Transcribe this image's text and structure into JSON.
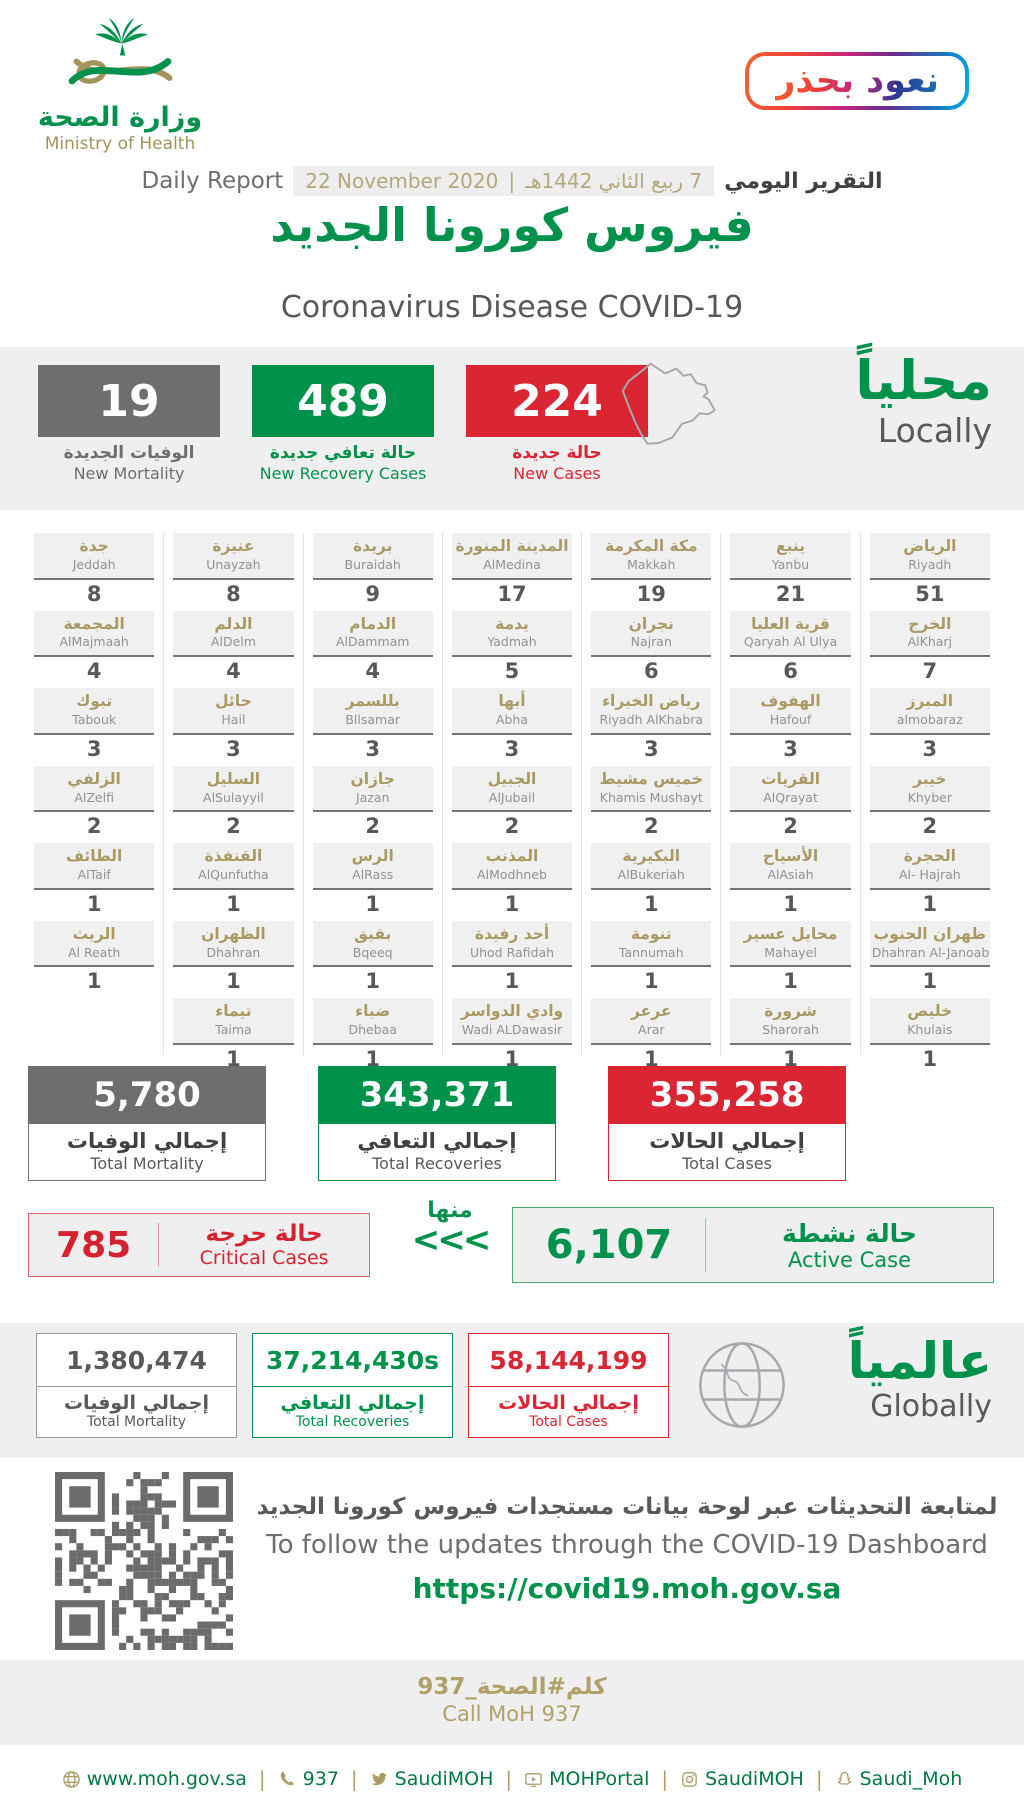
{
  "header": {
    "logo": {
      "title_ar": "وزارة الصحة",
      "title_en": "Ministry of Health"
    },
    "badge": {
      "text": "نعود بحذر"
    },
    "report": {
      "label_ar": "التقرير اليومي",
      "date_hijri": "7 ربيع الثاني 1442هـ",
      "separator": "|",
      "date_greg": "22 November 2020",
      "label_en": "Daily Report"
    },
    "title_ar": "فيروس كورونا الجديد",
    "title_en": "Coronavirus Disease COVID-19"
  },
  "locally": {
    "title_ar": "محلياً",
    "title_en": "Locally",
    "stats": [
      {
        "key": "new-mortality",
        "value": "19",
        "label_ar": "الوفيات الجديدة",
        "label_en": "New Mortality",
        "color": "#6d6e70"
      },
      {
        "key": "new-recovery",
        "value": "489",
        "label_ar": "حالة تعافي جديدة",
        "label_en": "New Recovery Cases",
        "color": "#00924a"
      },
      {
        "key": "new-cases",
        "value": "224",
        "label_ar": "حالة جديدة",
        "label_en": "New Cases",
        "color": "#da2532"
      }
    ]
  },
  "regions": {
    "columns": [
      {
        "cells": [
          {
            "ar": "جدة",
            "en": "Jeddah",
            "value": "8"
          },
          {
            "ar": "المجمعة",
            "en": "AlMajmaah",
            "value": "4"
          },
          {
            "ar": "تبوك",
            "en": "Tabouk",
            "value": "3"
          },
          {
            "ar": "الزلفي",
            "en": "AlZelfi",
            "value": "2"
          },
          {
            "ar": "الطائف",
            "en": "AlTaif",
            "value": "1"
          },
          {
            "ar": "الريث",
            "en": "Al Reath",
            "value": "1"
          }
        ]
      },
      {
        "cells": [
          {
            "ar": "عنيزة",
            "en": "Unayzah",
            "value": "8"
          },
          {
            "ar": "الدلم",
            "en": "AlDelm",
            "value": "4"
          },
          {
            "ar": "حائل",
            "en": "Hail",
            "value": "3"
          },
          {
            "ar": "السليل",
            "en": "AlSulayyil",
            "value": "2"
          },
          {
            "ar": "القنفذة",
            "en": "AlQunfutha",
            "value": "1"
          },
          {
            "ar": "الظهران",
            "en": "Dhahran",
            "value": "1"
          },
          {
            "ar": "تيماء",
            "en": "Taima",
            "value": "1"
          }
        ]
      },
      {
        "cells": [
          {
            "ar": "بريدة",
            "en": "Buraidah",
            "value": "9"
          },
          {
            "ar": "الدمام",
            "en": "AlDammam",
            "value": "4"
          },
          {
            "ar": "بللسمر",
            "en": "Bllsamar",
            "value": "3"
          },
          {
            "ar": "جازان",
            "en": "Jazan",
            "value": "2"
          },
          {
            "ar": "الرس",
            "en": "AlRass",
            "value": "1"
          },
          {
            "ar": "بقيق",
            "en": "Bqeeq",
            "value": "1"
          },
          {
            "ar": "ضباء",
            "en": "Dhebaa",
            "value": "1"
          }
        ]
      },
      {
        "cells": [
          {
            "ar": "المدينة المنورة",
            "en": "AlMedina",
            "value": "17"
          },
          {
            "ar": "يدمة",
            "en": "Yadmah",
            "value": "5"
          },
          {
            "ar": "أبها",
            "en": "Abha",
            "value": "3"
          },
          {
            "ar": "الجبيل",
            "en": "AlJubail",
            "value": "2"
          },
          {
            "ar": "المذنب",
            "en": "AlModhneb",
            "value": "1"
          },
          {
            "ar": "أحد رفيدة",
            "en": "Uhod Rafidah",
            "value": "1"
          },
          {
            "ar": "وادي الدواسر",
            "en": "Wadi ALDawasir",
            "value": "1"
          }
        ]
      },
      {
        "cells": [
          {
            "ar": "مكة المكرمة",
            "en": "Makkah",
            "value": "19"
          },
          {
            "ar": "نجران",
            "en": "Najran",
            "value": "6"
          },
          {
            "ar": "رياض الخبراء",
            "en": "Riyadh AlKhabra",
            "value": "3"
          },
          {
            "ar": "خميس مشيط",
            "en": "Khamis Mushayt",
            "value": "2"
          },
          {
            "ar": "البكيرية",
            "en": "AlBukeriah",
            "value": "1"
          },
          {
            "ar": "تنومة",
            "en": "Tannumah",
            "value": "1"
          },
          {
            "ar": "عرعر",
            "en": "Arar",
            "value": "1"
          }
        ]
      },
      {
        "cells": [
          {
            "ar": "ينبع",
            "en": "Yanbu",
            "value": "21"
          },
          {
            "ar": "قرية العليا",
            "en": "Qaryah Al Ulya",
            "value": "6"
          },
          {
            "ar": "الهفوف",
            "en": "Hafouf",
            "value": "3"
          },
          {
            "ar": "القريات",
            "en": "AlQrayat",
            "value": "2"
          },
          {
            "ar": "الأسياح",
            "en": "AlAsiah",
            "value": "1"
          },
          {
            "ar": "محايل عسير",
            "en": "Mahayel",
            "value": "1"
          },
          {
            "ar": "شرورة",
            "en": "Sharorah",
            "value": "1"
          }
        ]
      },
      {
        "cells": [
          {
            "ar": "الرياض",
            "en": "Riyadh",
            "value": "51"
          },
          {
            "ar": "الخرج",
            "en": "AlKharj",
            "value": "7"
          },
          {
            "ar": "المبرز",
            "en": "almobaraz",
            "value": "3"
          },
          {
            "ar": "خيبر",
            "en": "Khyber",
            "value": "2"
          },
          {
            "ar": "الحجرة",
            "en": "Al- Hajrah",
            "value": "1"
          },
          {
            "ar": "ظهران الجنوب",
            "en": "Dhahran Al-Janoab",
            "value": "1"
          },
          {
            "ar": "خليص",
            "en": "Khulais",
            "value": "1"
          }
        ]
      }
    ]
  },
  "totals": [
    {
      "key": "total-mortality",
      "value": "5,780",
      "label_ar": "إجمالي الوفيات",
      "label_en": "Total Mortality",
      "color": "#6d6e70"
    },
    {
      "key": "total-recoveries",
      "value": "343,371",
      "label_ar": "إجمالي التعافي",
      "label_en": "Total Recoveries",
      "color": "#00924a"
    },
    {
      "key": "total-cases",
      "value": "355,258",
      "label_ar": "إجمالي الحالات",
      "label_en": "Total Cases",
      "color": "#da2532"
    }
  ],
  "critical": {
    "value": "785",
    "label_ar": "حالة حرجة",
    "label_en": "Critical Cases"
  },
  "connector": {
    "label": "منها",
    "chevrons": "<<<"
  },
  "active": {
    "value": "6,107",
    "label_ar": "حالة نشطة",
    "label_en": "Active Case"
  },
  "globally": {
    "title_ar": "عالمياً",
    "title_en": "Globally",
    "stats": [
      {
        "key": "global-mortality",
        "value": "1,380,474",
        "label_ar": "إجمالي الوفيات",
        "label_en": "Total Mortality",
        "color": "#58595b",
        "border": "#97999c"
      },
      {
        "key": "global-recoveries",
        "value": "37,214,430s",
        "label_ar": "إجمالي التعافي",
        "label_en": "Total Recoveries",
        "color": "#00924a",
        "border": "#00924a"
      },
      {
        "key": "global-cases",
        "value": "58,144,199",
        "label_ar": "إجمالي الحالات",
        "label_en": "Total Cases",
        "color": "#da2532",
        "border": "#da2532"
      }
    ]
  },
  "dashboard": {
    "text_ar": "لمتابعة التحديثات عبر لوحة بيانات مستجدات فيروس كورونا الجديد",
    "text_en": "To follow the updates through the COVID-19 Dashboard",
    "url": "https://covid19.moh.gov.sa"
  },
  "call": {
    "text_ar": "كلم#الصحة_937",
    "text_en": "Call MoH 937"
  },
  "footer": {
    "separator": "|",
    "items": [
      {
        "icon": "globe-icon",
        "label": "www.moh.gov.sa"
      },
      {
        "icon": "phone-icon",
        "label": "937"
      },
      {
        "icon": "twitter-icon",
        "label": "SaudiMOH"
      },
      {
        "icon": "youtube-icon",
        "label": "MOHPortal"
      },
      {
        "icon": "instagram-icon",
        "label": "SaudiMOH"
      },
      {
        "icon": "snapchat-icon",
        "label": "Saudi_Moh"
      }
    ]
  }
}
